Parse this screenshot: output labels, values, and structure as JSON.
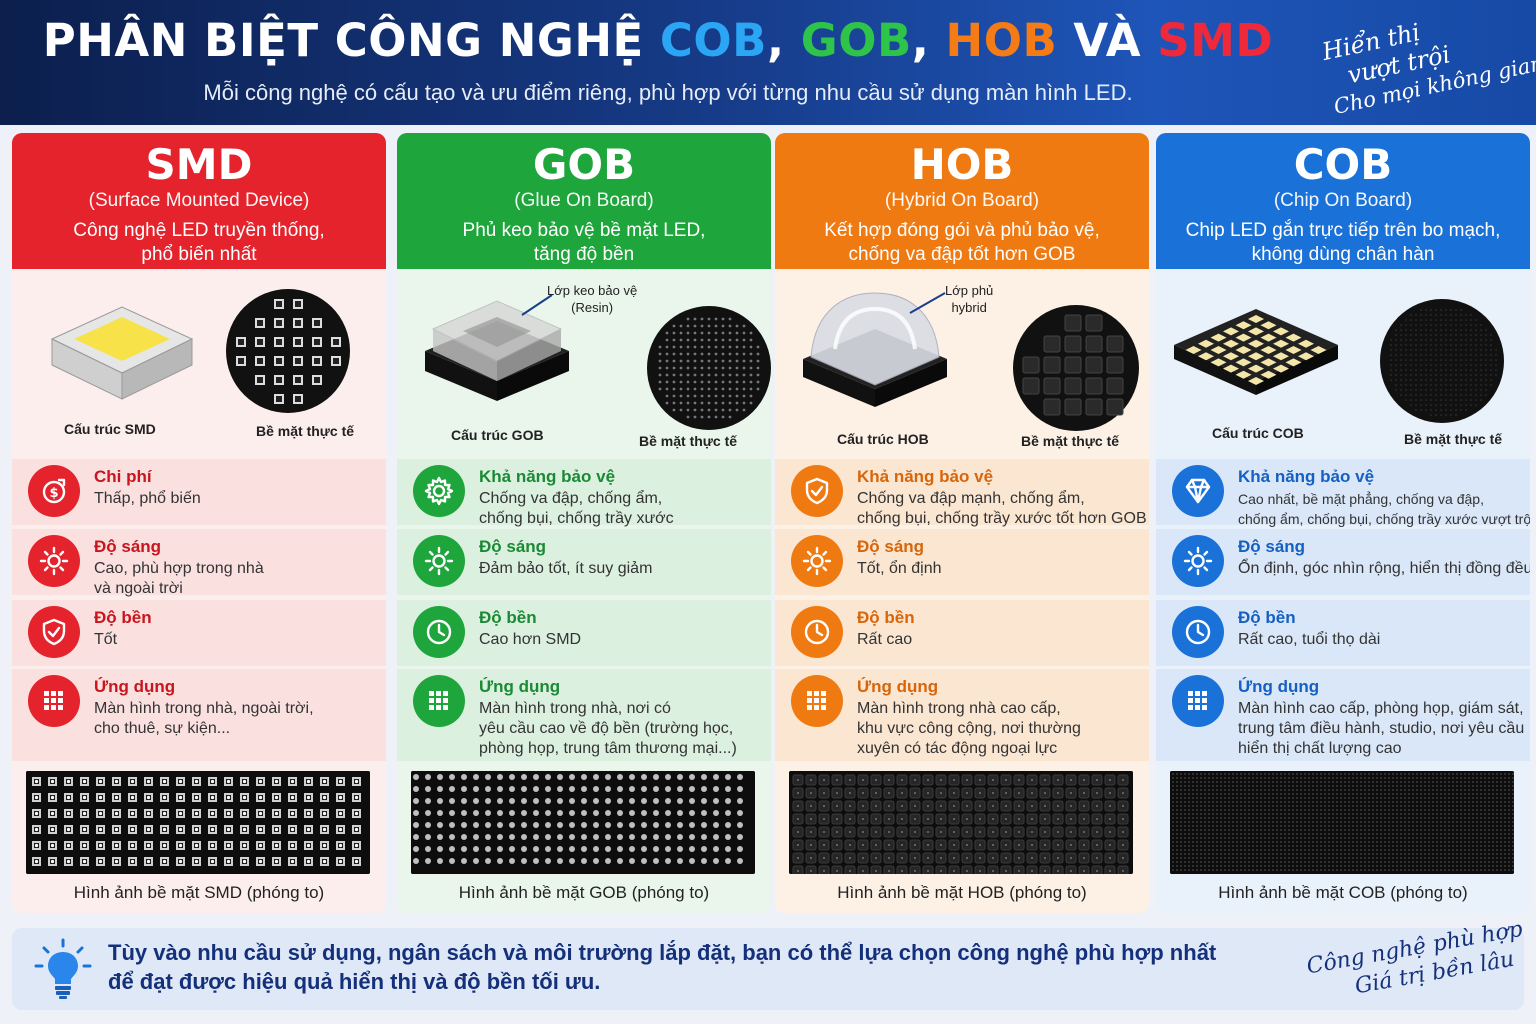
{
  "header": {
    "title_prefix": "PHÂN BIỆT CÔNG NGHỆ ",
    "title_cob": "COB",
    "title_comma1": ", ",
    "title_gob": "GOB",
    "title_comma2": ", ",
    "title_hob": "HOB",
    "title_and": " VÀ ",
    "title_smd": "SMD",
    "subtitle": "Mỗi công nghệ có cấu tạo và ưu điểm riêng, phù hợp với từng nhu cầu sử dụng màn hình LED.",
    "slogan": [
      "Hiển thị",
      "vượt trội",
      "Cho mọi không gian"
    ]
  },
  "columns": [
    {
      "name": "SMD",
      "full": "(Surface Mounted Device)",
      "desc1": "Công nghệ LED truyền thống,",
      "desc2": "phổ biến nhất",
      "color": "#e4232c",
      "bg": "#fdeeee",
      "feat_bg": "#fbe0e0",
      "struct_label": "Cấu trúc SMD",
      "surface_label": "Bề mặt thực tế",
      "features": [
        {
          "icon": "money-icon",
          "title": "Chi phí",
          "lines": [
            "Thấp, phổ biến"
          ]
        },
        {
          "icon": "sun-icon",
          "title": "Độ sáng",
          "lines": [
            "Cao, phù hợp trong nhà",
            "và ngoài trời"
          ]
        },
        {
          "icon": "shield-icon",
          "title": "Độ bền",
          "lines": [
            "Tốt"
          ]
        },
        {
          "icon": "grid-icon",
          "title": "Ứng dụng",
          "lines": [
            "Màn hình trong nhà, ngoài trời,",
            "cho thuê, sự kiện..."
          ]
        }
      ],
      "panel_caption": "Hình ảnh bề mặt SMD (phóng to)"
    },
    {
      "name": "GOB",
      "full": "(Glue On Board)",
      "desc1": "Phủ keo bảo vệ bề mặt LED,",
      "desc2": "tăng độ bền",
      "color": "#1ea63c",
      "bg": "#eaf6ec",
      "feat_bg": "#dcf0df",
      "struct_label": "Cấu trúc GOB",
      "surface_label": "Bề mặt thực tế",
      "callout": [
        "Lớp keo bảo vệ",
        "(Resin)"
      ],
      "features": [
        {
          "icon": "gear-icon",
          "title": "Khả năng bảo vệ",
          "lines": [
            "Chống va đập, chống ẩm,",
            "chống bụi, chống trầy xước"
          ]
        },
        {
          "icon": "sun-icon",
          "title": "Độ sáng",
          "lines": [
            "Đảm bảo tốt, ít suy giảm"
          ]
        },
        {
          "icon": "clock-icon",
          "title": "Độ bền",
          "lines": [
            "Cao hơn SMD"
          ]
        },
        {
          "icon": "grid-icon",
          "title": "Ứng dụng",
          "lines": [
            "Màn hình trong nhà, nơi có",
            "yêu cầu cao về độ bền (trường học,",
            "phòng họp, trung tâm thương mại...)"
          ]
        }
      ],
      "panel_caption": "Hình ảnh bề mặt GOB (phóng to)"
    },
    {
      "name": "HOB",
      "full": "(Hybrid On Board)",
      "desc1": "Kết hợp đóng gói và phủ bảo vệ,",
      "desc2": "chống va đập tốt hơn GOB",
      "color": "#f07a12",
      "bg": "#fdf1e6",
      "feat_bg": "#fbe6d2",
      "struct_label": "Cấu trúc HOB",
      "surface_label": "Bề mặt thực tế",
      "callout": [
        "Lớp phủ",
        "hybrid"
      ],
      "features": [
        {
          "icon": "shield-check-icon",
          "title": "Khả năng bảo vệ",
          "lines": [
            "Chống va đập mạnh, chống ẩm,",
            "chống bụi, chống trầy xước tốt hơn GOB"
          ]
        },
        {
          "icon": "sun-icon",
          "title": "Độ sáng",
          "lines": [
            "Tốt, ổn định"
          ]
        },
        {
          "icon": "clock-icon",
          "title": "Độ bền",
          "lines": [
            "Rất cao"
          ]
        },
        {
          "icon": "grid-icon",
          "title": "Ứng dụng",
          "lines": [
            "Màn hình trong nhà cao cấp,",
            "khu vực công cộng, nơi thường",
            "xuyên có tác động ngoại lực"
          ]
        }
      ],
      "panel_caption": "Hình ảnh bề mặt HOB (phóng to)"
    },
    {
      "name": "COB",
      "full": "(Chip On Board)",
      "desc1": "Chip LED gắn trực tiếp trên bo mạch,",
      "desc2": "không dùng chân hàn",
      "color": "#1a72d8",
      "bg": "#e9f1fb",
      "feat_bg": "#dae7f8",
      "struct_label": "Cấu trúc COB",
      "surface_label": "Bề mặt thực tế",
      "features": [
        {
          "icon": "diamond-icon",
          "title": "Khả năng bảo vệ",
          "lines": [
            "Cao nhất, bề mặt phẳng, chống va đập,",
            "chống ẩm, chống bụi, chống trầy xước vượt trội"
          ]
        },
        {
          "icon": "sun-icon",
          "title": "Độ sáng",
          "lines": [
            "Ổn định, góc nhìn rộng, hiển thị đồng đều"
          ]
        },
        {
          "icon": "clock-icon",
          "title": "Độ bền",
          "lines": [
            "Rất cao, tuổi thọ dài"
          ]
        },
        {
          "icon": "grid-icon",
          "title": "Ứng dụng",
          "lines": [
            "Màn hình cao cấp, phòng họp, giám sát,",
            "trung tâm điều hành, studio, nơi yêu cầu",
            "hiển thị chất lượng cao"
          ]
        }
      ],
      "panel_caption": "Hình ảnh bề mặt COB (phóng to)"
    }
  ],
  "bottom": {
    "line1": "Tùy vào nhu cầu sử dụng, ngân sách và môi trường lắp đặt, bạn có thể lựa chọn công nghệ phù hợp nhất",
    "line2": "để đạt được hiệu quả hiển thị và độ bền tối ưu.",
    "slogan": [
      "Công nghệ phù hợp",
      "Giá trị bền lâu"
    ]
  },
  "colors": {
    "cob": "#2aa6f5",
    "gob": "#2ec44a",
    "hob": "#f47b16",
    "smd": "#f0293a",
    "header_bg": "#163a86"
  }
}
